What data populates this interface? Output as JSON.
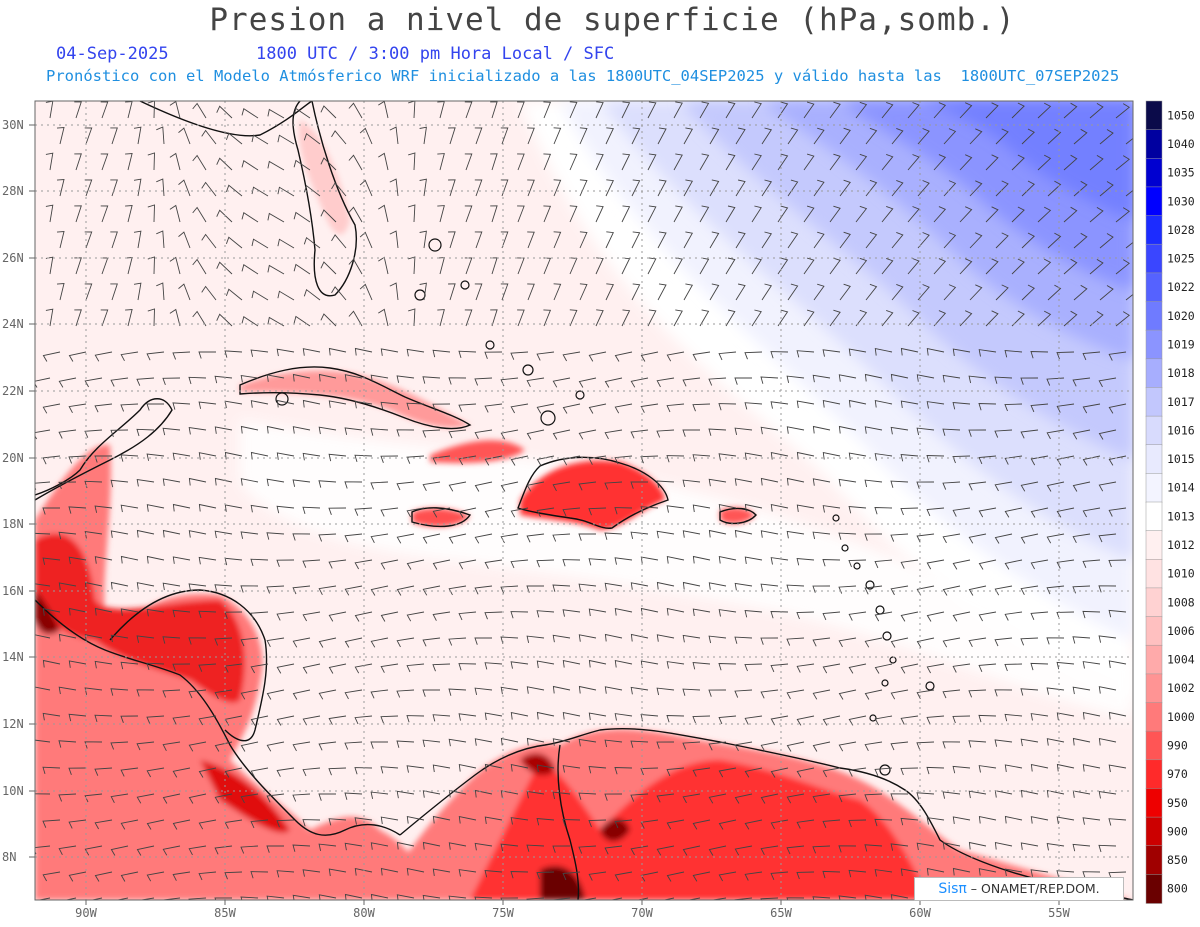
{
  "header": {
    "title": "Presion a nivel de superficie (hPa,somb.)",
    "date": "04-Sep-2025",
    "time": "1800 UTC / 3:00 pm Hora Local / SFC",
    "forecast": "Pronóstico con el Modelo Atmósferico WRF inicializado a las 1800UTC_04SEP2025 y válido hasta las  1800UTC_07SEP2025"
  },
  "map": {
    "lat_labels": [
      "30N",
      "28N",
      "26N",
      "24N",
      "22N",
      "20N",
      "18N",
      "16N",
      "14N",
      "12N",
      "10N",
      "8N"
    ],
    "lon_labels": [
      "90W",
      "85W",
      "80W",
      "75W",
      "70W",
      "65W",
      "60W",
      "55W"
    ]
  },
  "colorbar": {
    "levels": [
      "1050",
      "1040",
      "1035",
      "1030",
      "1028",
      "1025",
      "1022",
      "1020",
      "1019",
      "1018",
      "1017",
      "1016",
      "1015",
      "1014",
      "1013",
      "1012",
      "1010",
      "1008",
      "1006",
      "1004",
      "1002",
      "1000",
      "990",
      "970",
      "950",
      "900",
      "850",
      "800"
    ],
    "colors": [
      "#0b0b4a",
      "#0000a0",
      "#0000d0",
      "#0000ff",
      "#1c2cff",
      "#3a46ff",
      "#5562ff",
      "#6f7bff",
      "#8b94ff",
      "#a7aefe",
      "#c2c7fd",
      "#d8dbfd",
      "#e8eafe",
      "#f3f4ff",
      "#ffffff",
      "#fff0f0",
      "#ffe2e2",
      "#ffd2d2",
      "#ffc0c0",
      "#ffaaaa",
      "#ff9494",
      "#ff7a7a",
      "#ff5555",
      "#ff2a2a",
      "#ee0000",
      "#cc0000",
      "#a00000",
      "#6a0000"
    ]
  },
  "badge": {
    "brand": "Sisπ",
    "credit": "– ONAMET/REP.DOM."
  }
}
